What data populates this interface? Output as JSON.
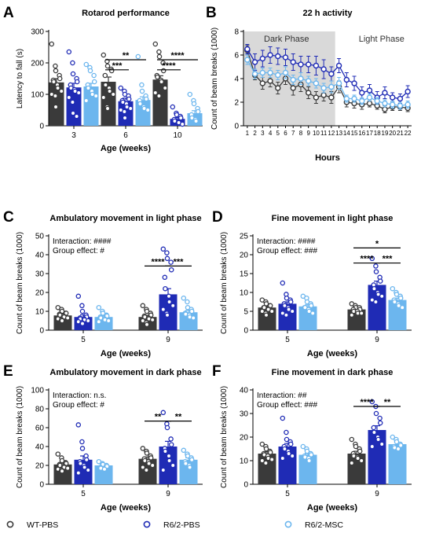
{
  "colors": {
    "wt": "#3a3a3a",
    "r6pbs": "#1f2bb5",
    "r6msc": "#6cb6ee",
    "shade": "#d9d9d9"
  },
  "legend": [
    {
      "key": "wt",
      "label": "WT-PBS"
    },
    {
      "key": "r6pbs",
      "label": "R6/2-PBS"
    },
    {
      "key": "r6msc",
      "label": "R6/2-MSC"
    }
  ],
  "chart_data": [
    {
      "id": "A",
      "panel_letter": "A",
      "type": "bar",
      "title": "Rotarod performance",
      "xlabel": "Age (weeks)",
      "ylabel": "Latency to fall (s)",
      "ylim": [
        0,
        300
      ],
      "yticks": [
        0,
        100,
        200,
        300
      ],
      "categories": [
        "3",
        "6",
        "10"
      ],
      "series": [
        {
          "key": "wt",
          "name": "WT-PBS",
          "values": [
            138,
            140,
            147
          ],
          "err": [
            12,
            15,
            12
          ],
          "points": [
            [
              260,
              190,
              175,
              160,
              150,
              145,
              140,
              130,
              120,
              110,
              100,
              95,
              60
            ],
            [
              225,
              205,
              190,
              180,
              175,
              160,
              130,
              120,
              110,
              100,
              90,
              60,
              55
            ],
            [
              260,
              235,
              220,
              200,
              175,
              160,
              155,
              145,
              140,
              120,
              105,
              95
            ]
          ]
        },
        {
          "key": "r6pbs",
          "name": "R6/2-PBS",
          "values": [
            122,
            78,
            22
          ],
          "err": [
            13,
            10,
            4
          ],
          "points": [
            [
              235,
              200,
              165,
              150,
              140,
              130,
              120,
              115,
              110,
              105,
              90,
              75,
              40,
              30
            ],
            [
              120,
              110,
              100,
              95,
              85,
              80,
              75,
              70,
              60,
              55,
              50,
              45,
              25
            ],
            [
              60,
              40,
              35,
              30,
              25,
              20,
              15,
              10,
              10,
              5
            ]
          ]
        },
        {
          "key": "r6msc",
          "name": "R6/2-MSC",
          "values": [
            125,
            82,
            40
          ],
          "err": [
            10,
            10,
            8
          ],
          "points": [
            [
              195,
              185,
              175,
              160,
              140,
              130,
              120,
              110,
              100,
              95,
              80
            ],
            [
              220,
              130,
              110,
              95,
              85,
              80,
              70,
              60,
              55,
              50
            ],
            [
              100,
              80,
              70,
              55,
              45,
              35,
              25,
              20,
              15
            ]
          ]
        }
      ],
      "sig": [
        {
          "cat": 1,
          "from": "wt",
          "to": "r6pbs",
          "y": 178,
          "label": "***"
        },
        {
          "cat": 1,
          "from": "wt",
          "to": "r6msc",
          "y": 210,
          "label": "**"
        },
        {
          "cat": 2,
          "from": "wt",
          "to": "r6pbs",
          "y": 178,
          "label": "****"
        },
        {
          "cat": 2,
          "from": "wt",
          "to": "r6msc",
          "y": 210,
          "label": "****"
        }
      ]
    },
    {
      "id": "B",
      "panel_letter": "B",
      "type": "line",
      "title": "22 h activity",
      "xlabel": "Hours",
      "ylabel": "Count of beam breaks (1000)",
      "ylim": [
        0,
        8
      ],
      "yticks": [
        0,
        2,
        4,
        6,
        8
      ],
      "x": [
        1,
        2,
        3,
        4,
        5,
        6,
        7,
        8,
        9,
        10,
        11,
        12,
        13,
        14,
        15,
        16,
        17,
        18,
        19,
        20,
        21,
        22
      ],
      "shaded_region": {
        "label": "Dark Phase",
        "from": 0.5,
        "to": 12.5
      },
      "region_labels": [
        "Dark Phase",
        "Light Phase"
      ],
      "series": [
        {
          "key": "wt",
          "name": "WT-PBS",
          "values": [
            6.4,
            4.3,
            3.6,
            3.8,
            3.2,
            4.0,
            3.2,
            3.5,
            2.8,
            2.4,
            2.6,
            2.4,
            3.3,
            2.0,
            1.9,
            1.8,
            1.9,
            1.7,
            1.4,
            1.6,
            1.6,
            1.5
          ],
          "err": [
            0.4,
            0.4,
            0.5,
            0.5,
            0.5,
            0.5,
            0.6,
            0.6,
            0.5,
            0.5,
            0.5,
            0.5,
            0.5,
            0.4,
            0.4,
            0.4,
            0.3,
            0.3,
            0.3,
            0.3,
            0.3,
            0.3
          ]
        },
        {
          "key": "r6pbs",
          "name": "R6/2-PBS",
          "values": [
            6.5,
            5.4,
            5.7,
            6.0,
            5.9,
            5.8,
            5.4,
            5.2,
            5.2,
            5.1,
            4.8,
            4.4,
            5.1,
            3.9,
            3.6,
            2.8,
            3.0,
            2.4,
            2.8,
            2.4,
            2.3,
            2.9
          ],
          "err": [
            0.4,
            0.7,
            0.7,
            0.7,
            0.7,
            0.7,
            0.7,
            0.7,
            0.7,
            0.8,
            0.8,
            0.6,
            0.6,
            0.6,
            0.6,
            0.5,
            0.5,
            0.5,
            0.5,
            0.4,
            0.4,
            0.5
          ]
        },
        {
          "key": "r6msc",
          "name": "R6/2-MSC",
          "values": [
            5.6,
            4.4,
            4.5,
            4.5,
            4.3,
            4.5,
            3.9,
            4.0,
            3.8,
            3.6,
            3.2,
            3.3,
            3.6,
            2.3,
            2.3,
            2.1,
            2.4,
            2.1,
            1.9,
            1.8,
            1.7,
            1.8
          ],
          "err": [
            0.4,
            0.4,
            0.4,
            0.4,
            0.4,
            0.5,
            0.4,
            0.5,
            0.4,
            0.4,
            0.4,
            0.5,
            0.5,
            0.3,
            0.3,
            0.3,
            0.3,
            0.3,
            0.3,
            0.3,
            0.3,
            0.3
          ]
        }
      ]
    },
    {
      "id": "C",
      "panel_letter": "C",
      "type": "bar",
      "title": "Ambulatory movement in light phase",
      "xlabel": "Age (weeks)",
      "ylabel": "Count of beam breaks (1000)",
      "ylim": [
        0,
        50
      ],
      "yticks": [
        0,
        10,
        20,
        30,
        40,
        50
      ],
      "categories": [
        "5",
        "9"
      ],
      "annotations": [
        "Interaction: ####",
        "Group effect: #"
      ],
      "series": [
        {
          "key": "wt",
          "name": "WT-PBS",
          "values": [
            7.8,
            7.0
          ],
          "err": [
            0.6,
            0.9
          ],
          "points": [
            [
              12,
              11,
              10,
              9,
              9,
              8.5,
              8,
              7.5,
              7,
              6.5,
              6,
              5.5,
              5
            ],
            [
              13,
              11,
              10,
              9,
              8,
              7.5,
              7,
              6.5,
              6,
              5.5,
              5,
              4,
              3
            ]
          ]
        },
        {
          "key": "r6pbs",
          "name": "R6/2-PBS",
          "values": [
            7.0,
            19.0
          ],
          "err": [
            1.2,
            3.0
          ],
          "points": [
            [
              18,
              13,
              10,
              8,
              7,
              6.5,
              6,
              6,
              5.5,
              5,
              4.5,
              4,
              3.5
            ],
            [
              43,
              41,
              38,
              36,
              32,
              28,
              22,
              18,
              15,
              13,
              11,
              9,
              8
            ]
          ]
        },
        {
          "key": "r6msc",
          "name": "R6/2-MSC",
          "values": [
            7.0,
            9.5
          ],
          "err": [
            0.6,
            1.0
          ],
          "points": [
            [
              12,
              10,
              9,
              8,
              7.5,
              7,
              6.5,
              6,
              5.5,
              5,
              4.5
            ],
            [
              17,
              15,
              12,
              11,
              10,
              9,
              8.5,
              8,
              7,
              6.5
            ]
          ]
        }
      ],
      "sig": [
        {
          "cat": 1,
          "from": "wt",
          "to": "r6pbs",
          "y": 34,
          "label": "****"
        },
        {
          "cat": 1,
          "from": "r6pbs",
          "to": "r6msc",
          "y": 34,
          "label": "***"
        }
      ]
    },
    {
      "id": "D",
      "panel_letter": "D",
      "type": "bar",
      "title": "Fine movement in light phase",
      "xlabel": "Age (weeks)",
      "ylabel": "Count of beam breaks (1000)",
      "ylim": [
        0,
        25
      ],
      "yticks": [
        0,
        5,
        10,
        15,
        20,
        25
      ],
      "categories": [
        "5",
        "9"
      ],
      "annotations": [
        "Interaction: ####",
        "Group effect: ###"
      ],
      "series": [
        {
          "key": "wt",
          "name": "WT-PBS",
          "values": [
            6.0,
            5.5
          ],
          "err": [
            0.3,
            0.3
          ],
          "points": [
            [
              8,
              7.5,
              7,
              6.5,
              6.5,
              6,
              6,
              5.5,
              5.5,
              5,
              5,
              4.5,
              4
            ],
            [
              7,
              6.5,
              6,
              6,
              5.5,
              5.5,
              5,
              5,
              4.5,
              4.5,
              4
            ]
          ]
        },
        {
          "key": "r6pbs",
          "name": "R6/2-PBS",
          "values": [
            7.0,
            12.0
          ],
          "err": [
            0.5,
            1.0
          ],
          "points": [
            [
              12.5,
              9.5,
              8.5,
              8,
              7.5,
              7,
              6.5,
              6,
              5.5,
              5,
              4.5,
              4
            ],
            [
              19,
              17,
              15.5,
              14,
              13,
              12,
              11,
              10,
              9.5,
              9,
              8,
              7.5
            ]
          ]
        },
        {
          "key": "r6msc",
          "name": "R6/2-MSC",
          "values": [
            6.3,
            8.0
          ],
          "err": [
            0.4,
            0.5
          ],
          "points": [
            [
              9,
              8.5,
              7.5,
              7,
              6.5,
              6,
              6,
              5.5,
              5,
              4.5
            ],
            [
              11,
              10,
              9.5,
              9,
              8.5,
              8,
              7.5,
              7,
              6.5,
              6
            ]
          ]
        }
      ],
      "sig": [
        {
          "cat": 1,
          "from": "wt",
          "to": "r6pbs",
          "y": 17.8,
          "label": "****"
        },
        {
          "cat": 1,
          "from": "r6pbs",
          "to": "r6msc",
          "y": 17.8,
          "label": "***"
        },
        {
          "cat": 1,
          "from": "wt",
          "to": "r6msc",
          "y": 21.8,
          "label": "*"
        }
      ]
    },
    {
      "id": "E",
      "panel_letter": "E",
      "type": "bar",
      "title": "Ambulatory movement in dark phase",
      "xlabel": "Age (weeks)",
      "ylabel": "Count of beam breaks (1000)",
      "ylim": [
        0,
        100
      ],
      "yticks": [
        0,
        20,
        40,
        60,
        80,
        100
      ],
      "categories": [
        "5",
        "9"
      ],
      "annotations": [
        "Interaction: n.s.",
        "Group effect: #"
      ],
      "series": [
        {
          "key": "wt",
          "name": "WT-PBS",
          "values": [
            21,
            27
          ],
          "err": [
            1.5,
            2.0
          ],
          "points": [
            [
              32,
              28,
              25,
              23,
              22,
              21,
              20,
              19,
              18,
              17,
              16,
              15,
              14
            ],
            [
              38,
              35,
              33,
              30,
              28,
              27,
              25,
              24,
              22,
              20,
              18,
              15
            ]
          ]
        },
        {
          "key": "r6pbs",
          "name": "R6/2-PBS",
          "values": [
            26,
            40
          ],
          "err": [
            4.0,
            5.5
          ],
          "points": [
            [
              63,
              45,
              38,
              30,
              26,
              24,
              22,
              20,
              18,
              15,
              12
            ],
            [
              76,
              64,
              60,
              48,
              42,
              38,
              35,
              30,
              25,
              20,
              15
            ]
          ]
        },
        {
          "key": "r6msc",
          "name": "R6/2-MSC",
          "values": [
            20,
            26
          ],
          "err": [
            1.2,
            2.0
          ],
          "points": [
            [
              24,
              22,
              21,
              20,
              19,
              18,
              17,
              16
            ],
            [
              36,
              32,
              30,
              28,
              26,
              24,
              22,
              20,
              18
            ]
          ]
        }
      ],
      "sig": [
        {
          "cat": 1,
          "from": "wt",
          "to": "r6pbs",
          "y": 67,
          "label": "**"
        },
        {
          "cat": 1,
          "from": "r6pbs",
          "to": "r6msc",
          "y": 67,
          "label": "**"
        }
      ]
    },
    {
      "id": "F",
      "panel_letter": "F",
      "type": "bar",
      "title": "Fine movement in dark phase",
      "xlabel": "Age (weeks)",
      "ylabel": "Count of beam breaks (1000)",
      "ylim": [
        0,
        40
      ],
      "yticks": [
        0,
        10,
        20,
        30,
        40
      ],
      "categories": [
        "5",
        "9"
      ],
      "annotations": [
        "Interaction: ##",
        "Group effect: ###"
      ],
      "series": [
        {
          "key": "wt",
          "name": "WT-PBS",
          "values": [
            13,
            13
          ],
          "err": [
            0.8,
            1.0
          ],
          "points": [
            [
              17,
              16,
              15,
              14,
              13.5,
              13,
              12.5,
              12,
              11,
              10.5,
              10,
              9
            ],
            [
              19,
              17,
              16,
              15,
              14,
              13,
              12,
              11.5,
              11,
              10,
              9
            ]
          ]
        },
        {
          "key": "r6pbs",
          "name": "R6/2-PBS",
          "values": [
            16,
            23
          ],
          "err": [
            1.3,
            1.8
          ],
          "points": [
            [
              28,
              22,
              19,
              18,
              17,
              16,
              15,
              14,
              13,
              12,
              11
            ],
            [
              35,
              33,
              30,
              28,
              26,
              24,
              22,
              20,
              19,
              17,
              16
            ]
          ]
        },
        {
          "key": "r6msc",
          "name": "R6/2-MSC",
          "values": [
            12.5,
            17
          ],
          "err": [
            0.6,
            0.8
          ],
          "points": [
            [
              16,
              15,
              14,
              13,
              12.5,
              12,
              11.5,
              11,
              10
            ],
            [
              20,
              19,
              18,
              17,
              16.5,
              16,
              15.5,
              15
            ]
          ]
        }
      ],
      "sig": [
        {
          "cat": 1,
          "from": "wt",
          "to": "r6pbs",
          "y": 33,
          "label": "****"
        },
        {
          "cat": 1,
          "from": "r6pbs",
          "to": "r6msc",
          "y": 33,
          "label": "**"
        }
      ]
    }
  ]
}
